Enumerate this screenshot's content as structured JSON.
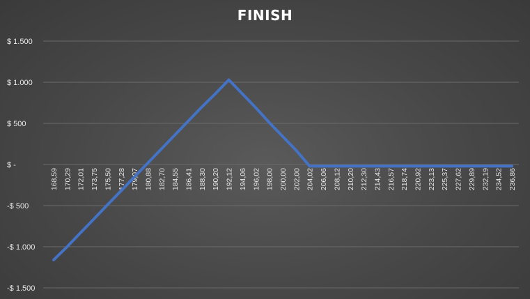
{
  "chart_data": {
    "type": "line",
    "title": "FINISH",
    "xlabel": "",
    "ylabel": "",
    "grid": "horizontal",
    "legend": "none",
    "colors": {
      "line": "#4472C4",
      "grid": "#6a6a6a",
      "text": "#e8e8e8"
    },
    "ylim": [
      -1500,
      1500
    ],
    "yticks": [
      {
        "value": 1500,
        "label": "$ 1.500"
      },
      {
        "value": 1000,
        "label": "$ 1.000"
      },
      {
        "value": 500,
        "label": "$ 500"
      },
      {
        "value": 0,
        "label": "$ -"
      },
      {
        "value": -500,
        "label": "-$ 500"
      },
      {
        "value": -1000,
        "label": "-$ 1.000"
      },
      {
        "value": -1500,
        "label": "-$ 1.500"
      }
    ],
    "categories": [
      "168,59",
      "170,29",
      "172,01",
      "173,75",
      "175,50",
      "177,28",
      "179,07",
      "180,88",
      "182,70",
      "184,55",
      "186,41",
      "188,30",
      "190,20",
      "192,12",
      "194,06",
      "196,02",
      "198,00",
      "200,00",
      "202,00",
      "204,02",
      "206,06",
      "208,12",
      "210,20",
      "212,30",
      "214,43",
      "216,57",
      "218,74",
      "220,92",
      "223,13",
      "225,37",
      "227,62",
      "229,89",
      "232,19",
      "234,52",
      "236,86"
    ],
    "series": [
      {
        "values": [
          -1160,
          -1000,
          -830,
          -660,
          -490,
          -320,
          -150,
          20,
          190,
          360,
          530,
          700,
          860,
          1030,
          860,
          690,
          510,
          340,
          170,
          -20,
          -20,
          -20,
          -20,
          -20,
          -20,
          -20,
          -20,
          -20,
          -20,
          -20,
          -20,
          -20,
          -20,
          -20,
          -20
        ]
      }
    ]
  }
}
